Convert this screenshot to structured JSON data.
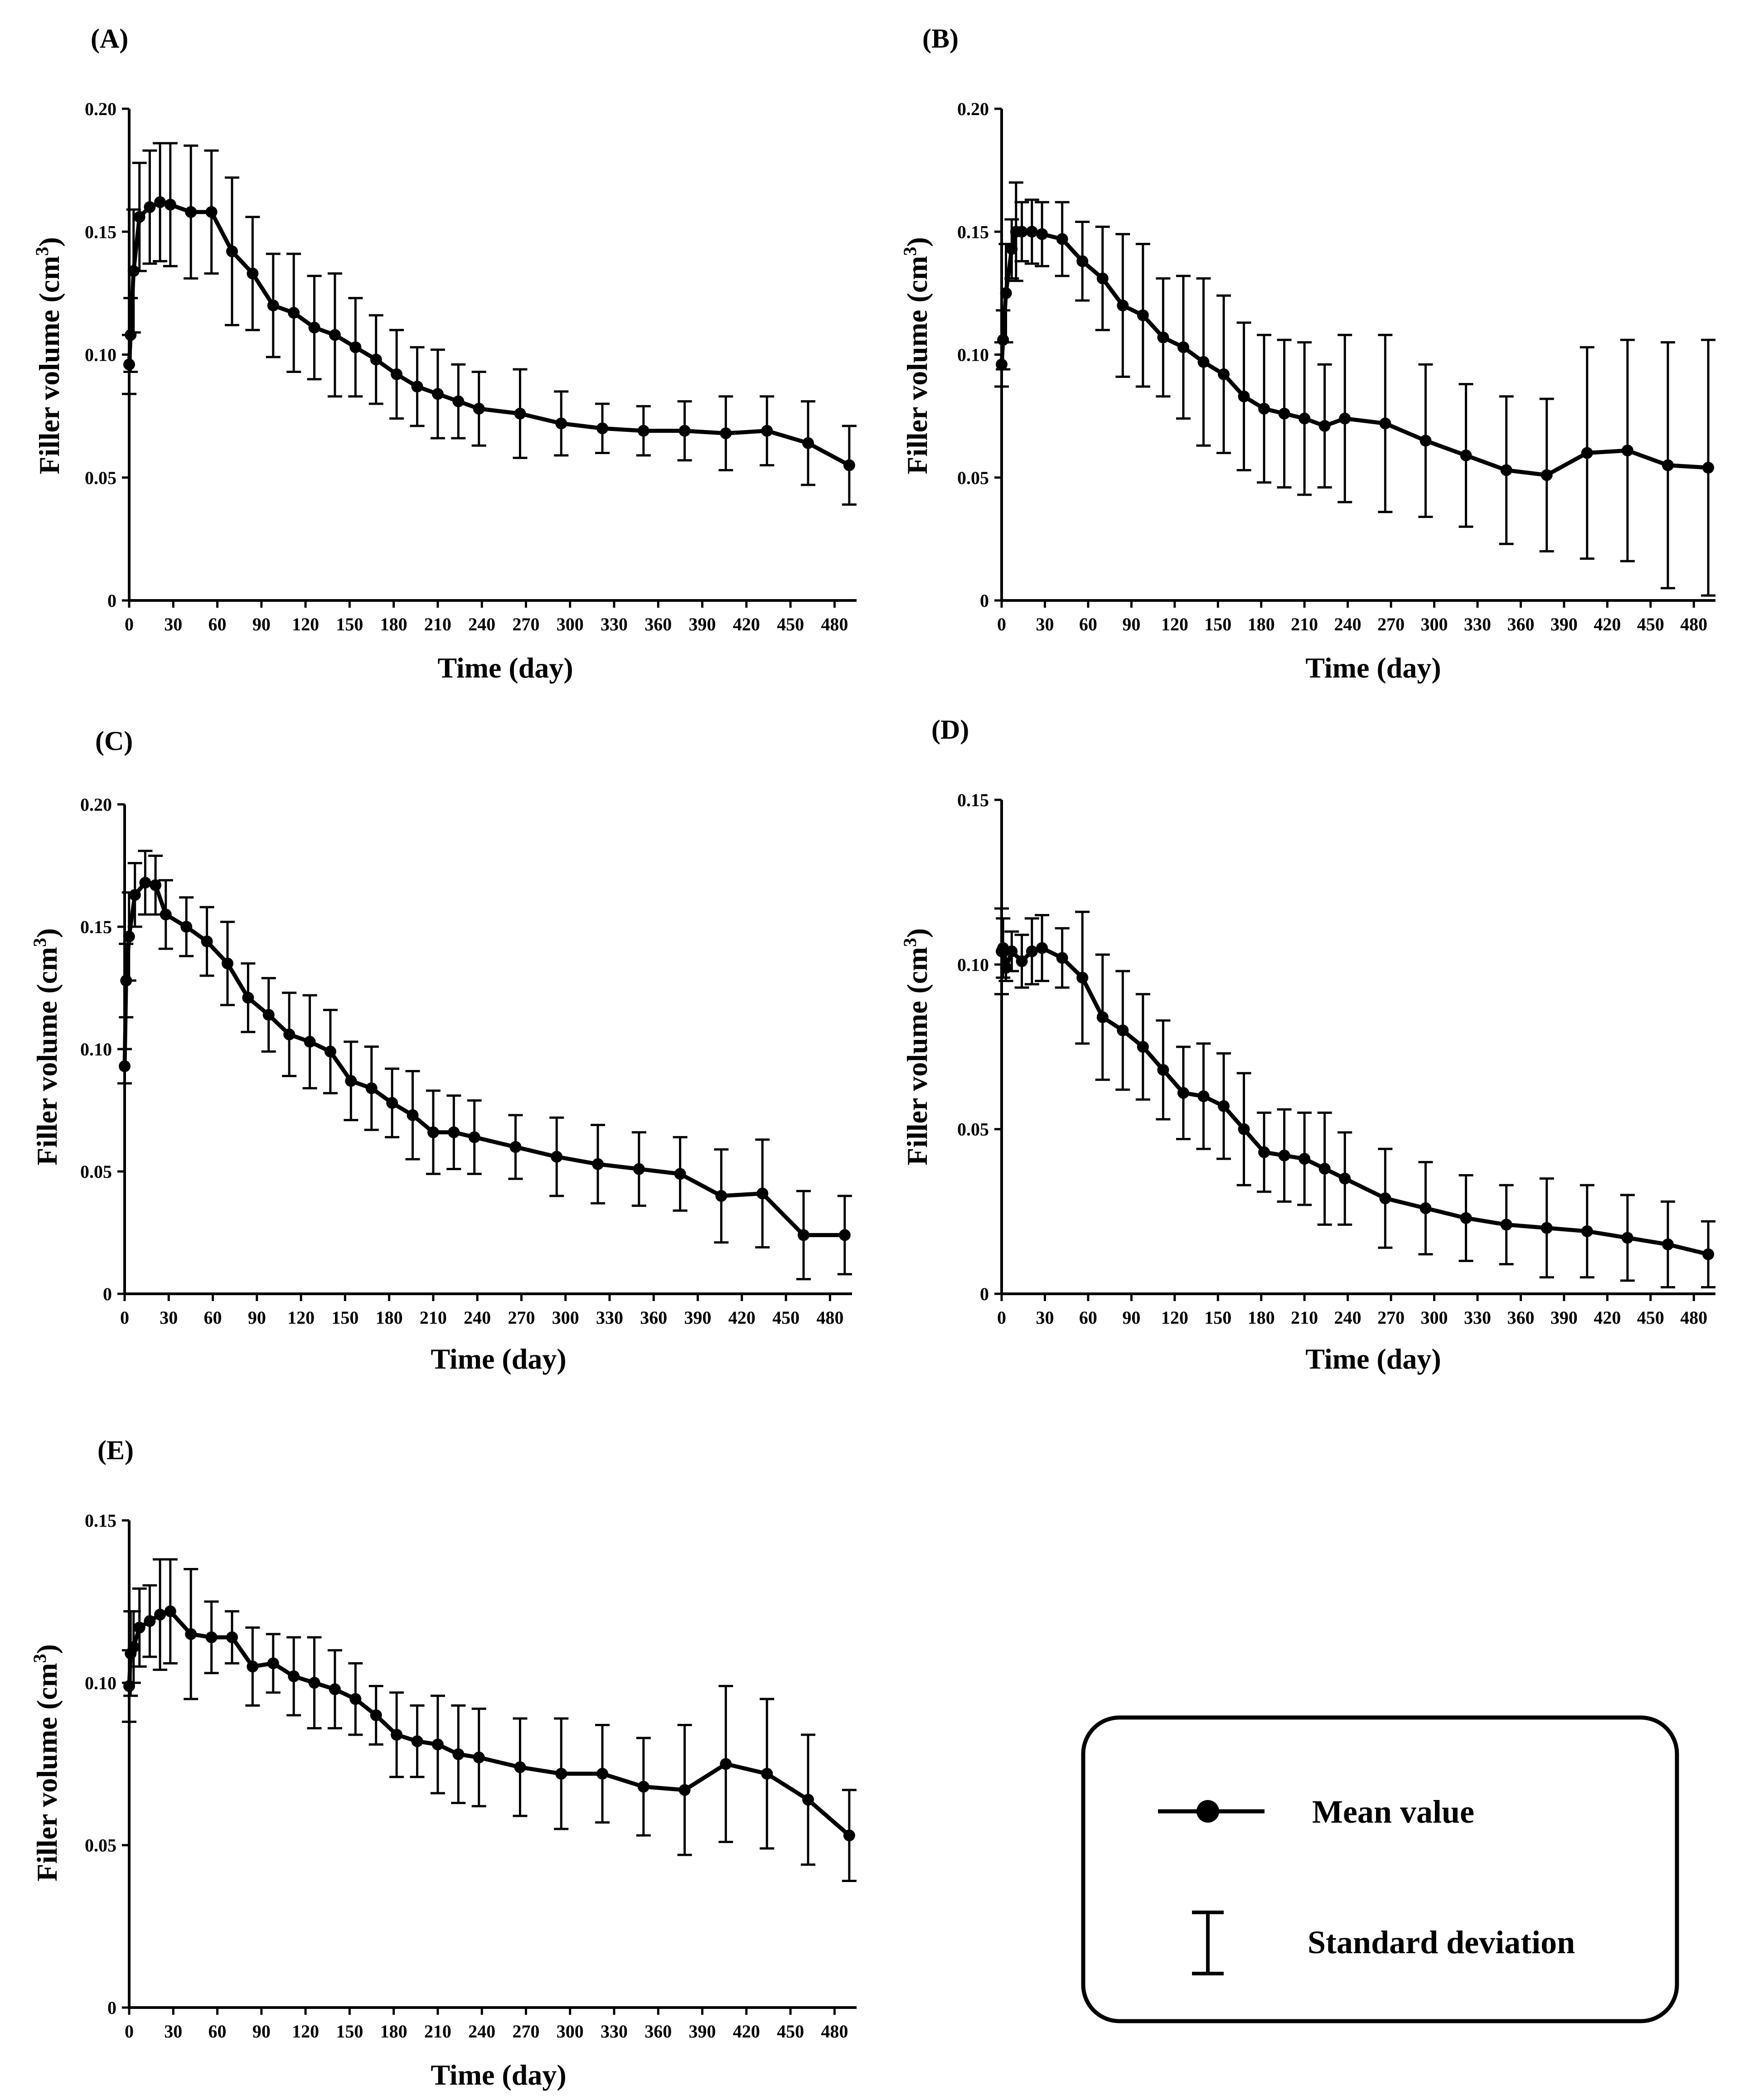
{
  "figure": {
    "aria_label": "Filler volume over time, panels A to E"
  },
  "colors": {
    "line": "#000000",
    "background": "#ffffff"
  },
  "legend": {
    "mean_label": "Mean value",
    "sd_label": "Standard deviation",
    "mean_icon": "line-with-dot-icon",
    "sd_icon": "error-bar-icon"
  },
  "chart_data": [
    {
      "panel": "(A)",
      "type": "line",
      "xlabel": "Time (day)",
      "ylabel": "Filler volume (cm",
      "ylabel_sup": "3",
      "ylabel_close": ")",
      "xlim": [
        0,
        495
      ],
      "ylim": [
        0,
        0.2
      ],
      "xticks": [
        "0",
        "30",
        "60",
        "90",
        "120",
        "150",
        "180",
        "210",
        "240",
        "270",
        "300",
        "330",
        "360",
        "390",
        "420",
        "450",
        "480"
      ],
      "yticks": [
        "0",
        "0.05",
        "0.10",
        "0.15",
        "0.20"
      ],
      "ytick_values": [
        0,
        0.05,
        0.1,
        0.15,
        0.2
      ],
      "series": [
        {
          "name": "Mean value",
          "x": [
            0,
            1,
            3,
            7,
            14,
            21,
            28,
            42,
            56,
            70,
            84,
            98,
            112,
            126,
            140,
            154,
            168,
            182,
            196,
            210,
            224,
            238,
            266,
            294,
            322,
            350,
            378,
            406,
            434,
            462,
            490
          ],
          "y": [
            0.096,
            0.108,
            0.134,
            0.156,
            0.16,
            0.162,
            0.161,
            0.158,
            0.158,
            0.142,
            0.133,
            0.12,
            0.117,
            0.111,
            0.108,
            0.103,
            0.098,
            0.092,
            0.087,
            0.084,
            0.081,
            0.078,
            0.076,
            0.072,
            0.07,
            0.069,
            0.069,
            0.068,
            0.069,
            0.064,
            0.055
          ],
          "sd": [
            0.012,
            0.015,
            0.025,
            0.022,
            0.023,
            0.024,
            0.025,
            0.027,
            0.025,
            0.03,
            0.023,
            0.021,
            0.024,
            0.021,
            0.025,
            0.02,
            0.018,
            0.018,
            0.016,
            0.018,
            0.015,
            0.015,
            0.018,
            0.013,
            0.01,
            0.01,
            0.012,
            0.015,
            0.014,
            0.017,
            0.016
          ]
        }
      ]
    },
    {
      "panel": "(B)",
      "type": "line",
      "xlabel": "Time (day)",
      "ylabel": "Filler volume (cm",
      "ylabel_sup": "3",
      "ylabel_close": ")",
      "xlim": [
        0,
        495
      ],
      "ylim": [
        0,
        0.2
      ],
      "xticks": [
        "0",
        "30",
        "60",
        "90",
        "120",
        "150",
        "180",
        "210",
        "240",
        "270",
        "300",
        "330",
        "360",
        "390",
        "420",
        "450",
        "480"
      ],
      "yticks": [
        "0",
        "0.05",
        "0.10",
        "0.15",
        "0.20"
      ],
      "ytick_values": [
        0,
        0.05,
        0.1,
        0.15,
        0.2
      ],
      "series": [
        {
          "name": "Mean value",
          "x": [
            0,
            1,
            3,
            7,
            10,
            14,
            21,
            28,
            42,
            56,
            70,
            84,
            98,
            112,
            126,
            140,
            154,
            168,
            182,
            196,
            210,
            224,
            238,
            266,
            294,
            322,
            350,
            378,
            406,
            434,
            462,
            490
          ],
          "y": [
            0.096,
            0.106,
            0.125,
            0.143,
            0.15,
            0.15,
            0.15,
            0.149,
            0.147,
            0.138,
            0.131,
            0.12,
            0.116,
            0.107,
            0.103,
            0.097,
            0.092,
            0.083,
            0.078,
            0.076,
            0.074,
            0.071,
            0.074,
            0.072,
            0.065,
            0.059,
            0.053,
            0.051,
            0.06,
            0.061,
            0.055,
            0.054
          ],
          "sd": [
            0.009,
            0.012,
            0.02,
            0.012,
            0.02,
            0.012,
            0.013,
            0.013,
            0.015,
            0.016,
            0.021,
            0.029,
            0.029,
            0.024,
            0.029,
            0.034,
            0.032,
            0.03,
            0.03,
            0.03,
            0.031,
            0.025,
            0.034,
            0.036,
            0.031,
            0.029,
            0.03,
            0.031,
            0.043,
            0.045,
            0.05,
            0.052
          ]
        }
      ]
    },
    {
      "panel": "(C)",
      "type": "line",
      "xlabel": "Time (day)",
      "ylabel": "Filler volume (cm",
      "ylabel_sup": "3",
      "ylabel_close": ")",
      "xlim": [
        0,
        495
      ],
      "ylim": [
        0,
        0.2
      ],
      "xticks": [
        "0",
        "30",
        "60",
        "90",
        "120",
        "150",
        "180",
        "210",
        "240",
        "270",
        "300",
        "330",
        "360",
        "390",
        "420",
        "450",
        "480"
      ],
      "yticks": [
        "0",
        "0.05",
        "0.10",
        "0.15",
        "0.20"
      ],
      "ytick_values": [
        0,
        0.05,
        0.1,
        0.15,
        0.2
      ],
      "series": [
        {
          "name": "Mean value",
          "x": [
            0,
            1,
            3,
            7,
            14,
            21,
            28,
            42,
            56,
            70,
            84,
            98,
            112,
            126,
            140,
            154,
            168,
            182,
            196,
            210,
            224,
            238,
            266,
            294,
            322,
            350,
            378,
            406,
            434,
            462,
            490
          ],
          "y": [
            0.093,
            0.128,
            0.146,
            0.163,
            0.168,
            0.167,
            0.155,
            0.15,
            0.144,
            0.135,
            0.121,
            0.114,
            0.106,
            0.103,
            0.099,
            0.087,
            0.084,
            0.078,
            0.073,
            0.066,
            0.066,
            0.064,
            0.06,
            0.056,
            0.053,
            0.051,
            0.049,
            0.04,
            0.041,
            0.024,
            0.024
          ],
          "sd": [
            0.007,
            0.015,
            0.018,
            0.013,
            0.013,
            0.012,
            0.014,
            0.012,
            0.014,
            0.017,
            0.014,
            0.015,
            0.017,
            0.019,
            0.017,
            0.016,
            0.017,
            0.014,
            0.018,
            0.017,
            0.015,
            0.015,
            0.013,
            0.016,
            0.016,
            0.015,
            0.015,
            0.019,
            0.022,
            0.018,
            0.016
          ]
        }
      ]
    },
    {
      "panel": "(D)",
      "type": "line",
      "xlabel": "Time (day)",
      "ylabel": "Filler volume (cm",
      "ylabel_sup": "3",
      "ylabel_close": ")",
      "xlim": [
        0,
        495
      ],
      "ylim": [
        0,
        0.15
      ],
      "xticks": [
        "0",
        "30",
        "60",
        "90",
        "120",
        "150",
        "180",
        "210",
        "240",
        "270",
        "300",
        "330",
        "360",
        "390",
        "420",
        "450",
        "480"
      ],
      "yticks": [
        "0",
        "0.05",
        "0.10",
        "0.15"
      ],
      "ytick_values": [
        0,
        0.05,
        0.1,
        0.15
      ],
      "series": [
        {
          "name": "Mean value",
          "x": [
            0,
            1,
            3,
            7,
            14,
            21,
            28,
            42,
            56,
            70,
            84,
            98,
            112,
            126,
            140,
            154,
            168,
            182,
            196,
            210,
            224,
            238,
            266,
            294,
            322,
            350,
            378,
            406,
            434,
            462,
            490
          ],
          "y": [
            0.104,
            0.105,
            0.099,
            0.104,
            0.101,
            0.104,
            0.105,
            0.102,
            0.096,
            0.084,
            0.08,
            0.075,
            0.068,
            0.061,
            0.06,
            0.057,
            0.05,
            0.043,
            0.042,
            0.041,
            0.038,
            0.035,
            0.029,
            0.026,
            0.023,
            0.021,
            0.02,
            0.019,
            0.017,
            0.015,
            0.012
          ],
          "sd": [
            0.013,
            0.009,
            0.004,
            0.006,
            0.008,
            0.01,
            0.01,
            0.009,
            0.02,
            0.019,
            0.018,
            0.016,
            0.015,
            0.014,
            0.016,
            0.016,
            0.017,
            0.012,
            0.014,
            0.014,
            0.017,
            0.014,
            0.015,
            0.014,
            0.013,
            0.012,
            0.015,
            0.014,
            0.013,
            0.013,
            0.01
          ]
        }
      ]
    },
    {
      "panel": "(E)",
      "type": "line",
      "xlabel": "Time (day)",
      "ylabel": "Filler volume (cm",
      "ylabel_sup": "3",
      "ylabel_close": ")",
      "xlim": [
        0,
        495
      ],
      "ylim": [
        0,
        0.15
      ],
      "xticks": [
        "0",
        "30",
        "60",
        "90",
        "120",
        "150",
        "180",
        "210",
        "240",
        "270",
        "300",
        "330",
        "360",
        "390",
        "420",
        "450",
        "480"
      ],
      "yticks": [
        "0",
        "0.05",
        "0.10",
        "0.15"
      ],
      "ytick_values": [
        0,
        0.05,
        0.1,
        0.15
      ],
      "series": [
        {
          "name": "Mean value",
          "x": [
            0,
            1,
            3,
            7,
            14,
            21,
            28,
            42,
            56,
            70,
            84,
            98,
            112,
            126,
            140,
            154,
            168,
            182,
            196,
            210,
            224,
            238,
            266,
            294,
            322,
            350,
            378,
            406,
            434,
            462,
            490
          ],
          "y": [
            0.099,
            0.109,
            0.111,
            0.117,
            0.119,
            0.121,
            0.122,
            0.115,
            0.114,
            0.114,
            0.105,
            0.106,
            0.102,
            0.1,
            0.098,
            0.095,
            0.09,
            0.084,
            0.082,
            0.081,
            0.078,
            0.077,
            0.074,
            0.072,
            0.072,
            0.068,
            0.067,
            0.075,
            0.072,
            0.064,
            0.053
          ],
          "sd": [
            0.011,
            0.013,
            0.011,
            0.012,
            0.011,
            0.017,
            0.016,
            0.02,
            0.011,
            0.008,
            0.012,
            0.009,
            0.012,
            0.014,
            0.012,
            0.011,
            0.009,
            0.013,
            0.011,
            0.015,
            0.015,
            0.015,
            0.015,
            0.017,
            0.015,
            0.015,
            0.02,
            0.024,
            0.023,
            0.02,
            0.014
          ]
        }
      ]
    }
  ]
}
